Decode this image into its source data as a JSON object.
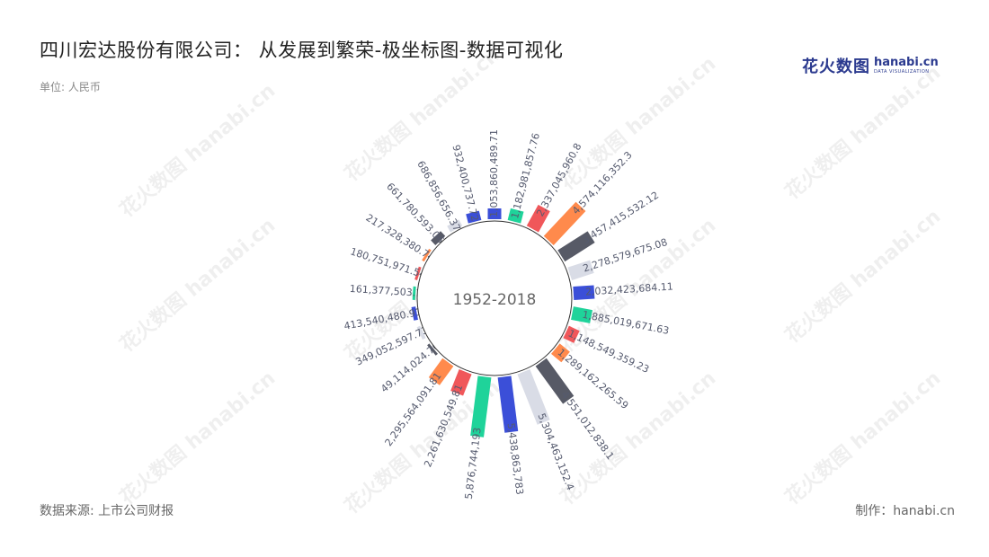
{
  "header": {
    "title": "四川宏达股份有限公司： 从发展到繁荣-极坐标图-数据可视化",
    "unit": "单位: 人民币"
  },
  "logo": {
    "cn": "花火数图",
    "en": "hanabi.cn",
    "sub": "DATA VISUALIZATION"
  },
  "watermark": {
    "text": "花火数图 hanabi.cn"
  },
  "footer": {
    "source": "数据来源: 上市公司财报",
    "credit": "制作：hanabi.cn"
  },
  "chart_data": {
    "type": "bar",
    "subtype": "polar-radial",
    "center_label": "1952-2018",
    "palette": [
      "#3b4fd8",
      "#1fd39a",
      "#f0575a",
      "#ff8a4c",
      "#575a66",
      "#d9dce6"
    ],
    "labels": [
      "1,053,860,489.71",
      "1,182,981,857.76",
      "2,337,045,960.8",
      "4,574,116,352.3",
      "3,457,415,532.12",
      "2,278,579,675.08",
      "2,032,423,684.11",
      "1,885,019,671.63",
      "1,148,549,359.23",
      "1,289,162,265.59",
      "4,551,012,838.1",
      "5,304,463,152.4",
      "5,438,863,783",
      "5,876,744,193",
      "2,261,630,549.81",
      "2,295,564,091.81",
      "49,114,024.76",
      "349,052,597.73",
      "413,540,480.91",
      "161,377,503.1",
      "180,751,971.54",
      "217,328,380.74",
      "661,780,593.06",
      "686,856,656.37",
      "932,400,737.72"
    ],
    "values": [
      1053860489.71,
      1182981857.76,
      2337045960.8,
      4574116352.3,
      3457415532.12,
      2278579675.08,
      2032423684.11,
      1885019671.63,
      1148549359.23,
      1289162265.59,
      4551012838.1,
      5304463152.4,
      5438863783,
      5876744193,
      2261630549.81,
      2295564091.81,
      49114024.76,
      349052597.73,
      413540480.91,
      161377503.1,
      180751971.54,
      217328380.74,
      661780593.06,
      686856656.37,
      932400737.72
    ],
    "max_value": 5876744193
  }
}
